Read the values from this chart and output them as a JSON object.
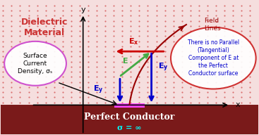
{
  "fig_width": 3.67,
  "fig_height": 1.92,
  "dpi": 100,
  "bg_dielectric_color": "#f5dede",
  "dot_color": "#cc3333",
  "conductor_color": "#7a1a1a",
  "conductor_label": "Perfect Conductor",
  "conductor_sigma": "σ = ∞",
  "dielectric_label_line1": "Dielectric",
  "dielectric_label_line2": "Material",
  "surface_ellipse_color": "#cc44cc",
  "surface_text": "Surface\nCurrent\nDensity, σₛ",
  "right_ellipse_color": "#cc2222",
  "right_text": "There is no Parallel\n(Tangential)\nComponent of E at\nthe Perfect\nConductor surface",
  "field_lines_label": "Field\nLines",
  "Ex_color": "#cc0000",
  "Ey_color": "#0000cc",
  "E_color": "#44aa44",
  "magenta_bar_color": "#ff44ff",
  "field_line_color": "#990000"
}
